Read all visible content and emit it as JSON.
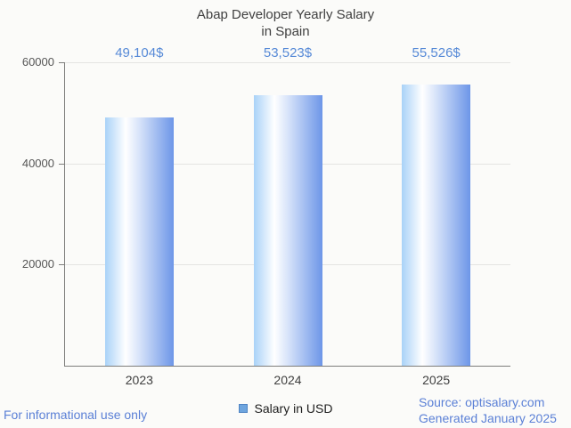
{
  "title": {
    "line1": "Abap Developer Yearly Salary",
    "line2": "in Spain"
  },
  "chart_data": {
    "type": "bar",
    "title": "Abap Developer Yearly Salary in Spain",
    "categories": [
      "2023",
      "2024",
      "2025"
    ],
    "values": [
      49104,
      53523,
      55526
    ],
    "value_labels": [
      "49,104$",
      "53,523$",
      "55,526$"
    ],
    "series_name": "Salary in USD",
    "xlabel": "",
    "ylabel": "",
    "ylim": [
      0,
      60000
    ],
    "yticks": [
      20000,
      40000,
      60000
    ],
    "ytick_labels": [
      "20000",
      "40000",
      "60000"
    ],
    "grid": true,
    "legend_position": "bottom-center"
  },
  "legend": {
    "label": "Salary in USD"
  },
  "footer": {
    "disclaimer": "For informational use only",
    "source": "Source: optisalary.com",
    "generated": "Generated January 2025"
  },
  "colors": {
    "background": "#fbfbf9",
    "title_text": "#404040",
    "value_label_text": "#578ad7",
    "footer_text": "#5b80d6",
    "axis_line": "#7e7e7c",
    "gridline": "#e4e4e2",
    "tick_label_text": "#565656",
    "category_label_text": "#3f3f3f",
    "bar_gradient_left": "#a9d2f8",
    "bar_gradient_mid": "#ffffff",
    "bar_gradient_right": "#6d96e8",
    "legend_swatch_fill": "#6ea5de",
    "legend_swatch_border": "#4f84c4"
  }
}
